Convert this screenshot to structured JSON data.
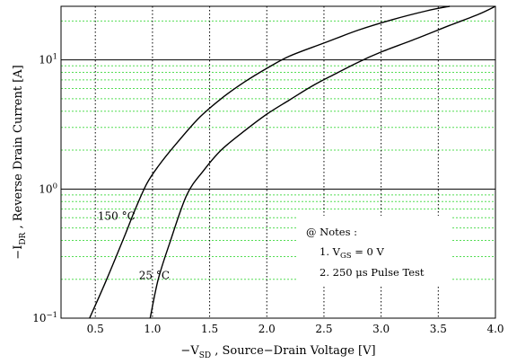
{
  "chart_data": {
    "type": "line",
    "xlabel_prefix": "−V",
    "xlabel_sub": "SD",
    "xlabel_rest": " ,  Source−Drain Voltage   [V]",
    "ylabel_prefix": "−I",
    "ylabel_sub": "DR",
    "ylabel_rest": " ,  Reverse Drain Current   [A]",
    "xlim": [
      0.2,
      4.0
    ],
    "ylim": [
      0.1,
      26
    ],
    "yscale": "log",
    "grid": true,
    "x_ticks": [
      {
        "v": 0.5,
        "label": "0.5"
      },
      {
        "v": 1.0,
        "label": "1.0"
      },
      {
        "v": 1.5,
        "label": "1.5"
      },
      {
        "v": 2.0,
        "label": "2.0"
      },
      {
        "v": 2.5,
        "label": "2.5"
      },
      {
        "v": 3.0,
        "label": "3.0"
      },
      {
        "v": 3.5,
        "label": "3.5"
      },
      {
        "v": 4.0,
        "label": "4.0"
      }
    ],
    "y_ticks": [
      {
        "v": 0.1,
        "base": "10",
        "exp": "−1"
      },
      {
        "v": 1,
        "base": "10",
        "exp": "0"
      },
      {
        "v": 10,
        "base": "10",
        "exp": "1"
      }
    ],
    "series": [
      {
        "name": "150 °C",
        "x": [
          0.45,
          0.6,
          0.75,
          0.85,
          0.95,
          1.05,
          1.2,
          1.4,
          1.6,
          1.8,
          2.0,
          2.2,
          2.5,
          2.8,
          3.1,
          3.4,
          3.6
        ],
        "y": [
          0.1,
          0.2,
          0.42,
          0.7,
          1.1,
          1.5,
          2.2,
          3.5,
          5.0,
          6.7,
          8.6,
          10.7,
          13.5,
          17.0,
          20.5,
          24.0,
          26.0
        ]
      },
      {
        "name": "25 °C",
        "x": [
          0.98,
          1.05,
          1.15,
          1.3,
          1.45,
          1.6,
          1.8,
          2.0,
          2.2,
          2.4,
          2.6,
          2.8,
          3.0,
          3.3,
          3.6,
          3.85,
          4.0
        ],
        "y": [
          0.1,
          0.2,
          0.38,
          0.9,
          1.4,
          2.0,
          2.8,
          3.8,
          4.9,
          6.3,
          7.8,
          9.6,
          11.5,
          14.5,
          18.5,
          22.5,
          26.0
        ]
      }
    ],
    "annotations": {
      "series_labels": [
        {
          "text": "150 °C",
          "x": 0.85,
          "y": 0.58
        },
        {
          "text": "25 °C",
          "x": 1.15,
          "y": 0.2
        }
      ],
      "notes_title": "@ Notes :",
      "note1_pre": "1.  V",
      "note1_sub": "GS",
      "note1_post": " = 0 V",
      "note2": "2.  250 μs Pulse Test"
    }
  }
}
